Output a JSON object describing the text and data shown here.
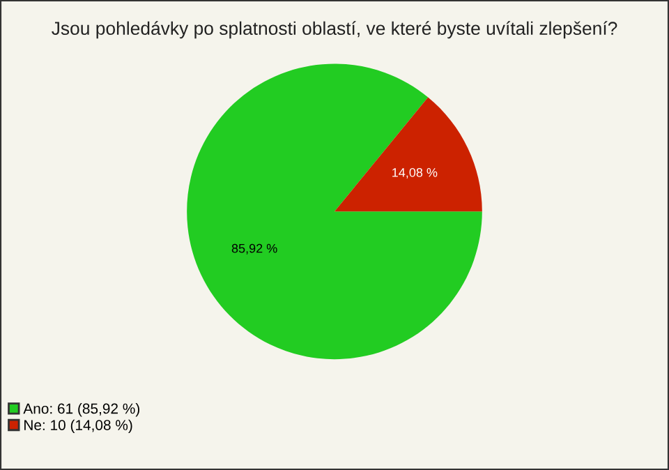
{
  "chart_data": {
    "type": "pie",
    "title": "Jsou pohledávky po splatnosti oblastí, ve které byste uvítali zlepšení?",
    "categories": [
      "Ano: 61 (85,92 %)",
      "Ne: 10 (14,08 %)"
    ],
    "values": [
      85.92,
      14.08
    ],
    "value_labels": [
      "85,92 %",
      "14,08 %"
    ],
    "colors": [
      "#22cc22",
      "#cc2200"
    ],
    "legend": "bottom left"
  }
}
